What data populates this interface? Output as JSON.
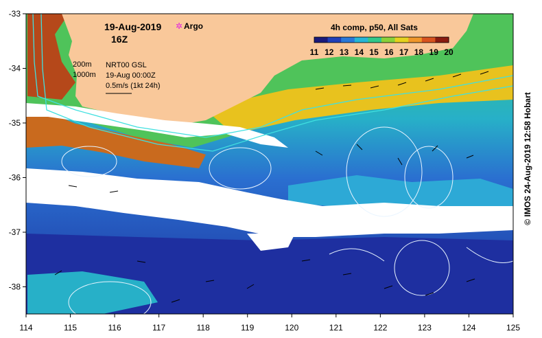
{
  "map": {
    "date": "19-Aug-2019",
    "hour": "16Z",
    "argo_label": "Argo",
    "product": "4h comp, p50, All Sats",
    "colorbar_ticks": [
      "11",
      "12",
      "13",
      "14",
      "15",
      "16",
      "17",
      "18",
      "19",
      "20"
    ],
    "colorbar_colors": [
      "#1a1a7a",
      "#1f3fb8",
      "#2a78d8",
      "#27b6d6",
      "#32c88a",
      "#8ad13a",
      "#e6d21e",
      "#f0962a",
      "#d8531f",
      "#8a1c10"
    ],
    "contour_labels": [
      "200m",
      "1000m"
    ],
    "altimetry": "NRT00 GSL",
    "altimetry_time": "19-Aug 00:00Z",
    "vector_scale": "0.5m/s (1kt 24h)",
    "lon_ticks": [
      "114",
      "115",
      "116",
      "117",
      "118",
      "119",
      "120",
      "121",
      "122",
      "123",
      "124",
      "125"
    ],
    "lat_ticks": [
      "-33",
      "-34",
      "-35",
      "-36",
      "-37",
      "-38"
    ],
    "credit": "© IMOS 24-Aug-2019 12:58 Hobart",
    "land_color": "#f9c89a",
    "cloud_color": "#ffffff",
    "argo_color": "#e020e0"
  }
}
